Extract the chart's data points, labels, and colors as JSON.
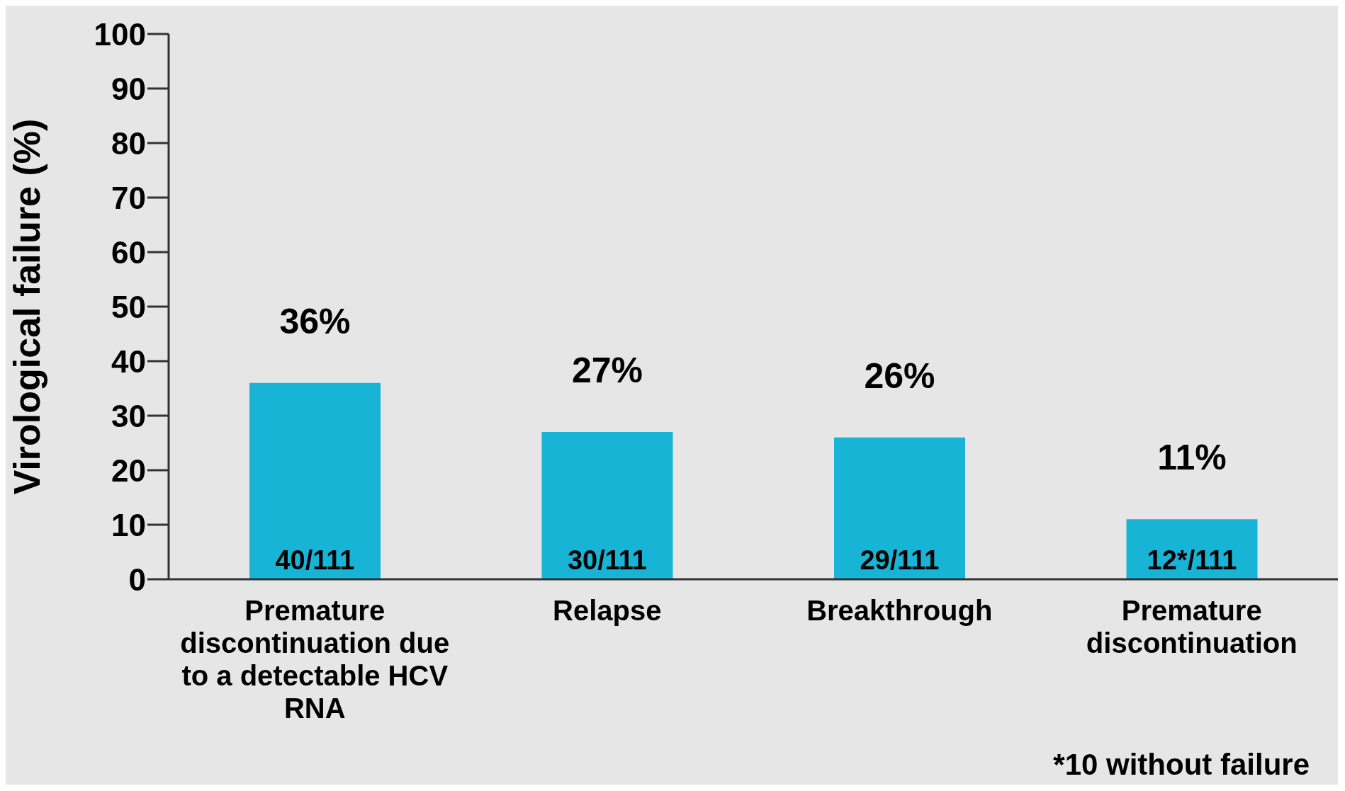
{
  "chart_data": {
    "type": "bar",
    "ylabel": "Virological failure  (%)",
    "categories": [
      "Premature discontinuation due to a detectable HCV RNA",
      "Relapse",
      "Breakthrough",
      "Premature discontinuation"
    ],
    "values": [
      36,
      27,
      26,
      11
    ],
    "value_labels": [
      "36%",
      "27%",
      "26%",
      "11%"
    ],
    "color": "#17b4d6",
    "ylim": [
      0,
      100
    ],
    "yticks": [
      0,
      10,
      20,
      30,
      40,
      50,
      60,
      70,
      80,
      90,
      100
    ],
    "grid": false,
    "legend": false,
    "annotations": [
      "40/111",
      "30/111",
      "29/111",
      "12*/111",
      "*10 without failure"
    ]
  }
}
